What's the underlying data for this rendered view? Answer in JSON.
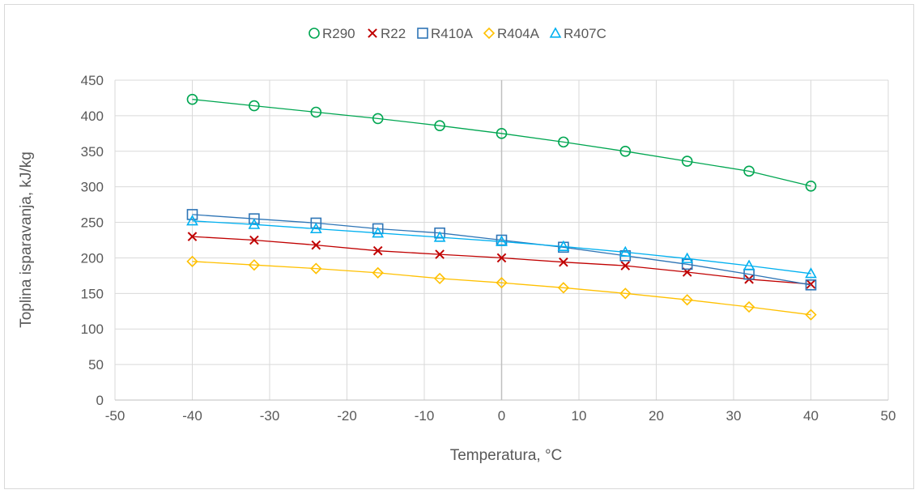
{
  "chart_data": {
    "type": "scatter",
    "xlabel": "Temperatura, °C",
    "ylabel": "Toplina isparavanja, kJ/kg",
    "xlim": [
      -50,
      50
    ],
    "ylim": [
      0,
      450
    ],
    "xticks": [
      -50,
      -40,
      -30,
      -20,
      -10,
      0,
      10,
      20,
      30,
      40,
      50
    ],
    "yticks": [
      0,
      50,
      100,
      150,
      200,
      250,
      300,
      350,
      400,
      450
    ],
    "grid": true,
    "legend_position": "top",
    "x": [
      -40,
      -32,
      -24,
      -16,
      -8,
      0,
      8,
      16,
      24,
      32,
      40
    ],
    "series": [
      {
        "name": "R290",
        "marker": "circle",
        "color": "#00a651",
        "values": [
          423,
          414,
          405,
          396,
          386,
          375,
          363,
          350,
          336,
          322,
          301
        ]
      },
      {
        "name": "R22",
        "marker": "x",
        "color": "#c00000",
        "values": [
          230,
          225,
          218,
          210,
          205,
          200,
          194,
          189,
          180,
          170,
          163
        ]
      },
      {
        "name": "R410A",
        "marker": "square",
        "color": "#2e75b6",
        "values": [
          261,
          255,
          249,
          241,
          235,
          225,
          215,
          203,
          191,
          177,
          162
        ]
      },
      {
        "name": "R404A",
        "marker": "diamond",
        "color": "#ffc000",
        "values": [
          195,
          190,
          185,
          179,
          171,
          165,
          158,
          150,
          141,
          131,
          120
        ]
      },
      {
        "name": "R407C",
        "marker": "triangle",
        "color": "#00b0f0",
        "values": [
          252,
          247,
          241,
          235,
          229,
          223,
          216,
          208,
          199,
          189,
          178
        ]
      }
    ]
  }
}
